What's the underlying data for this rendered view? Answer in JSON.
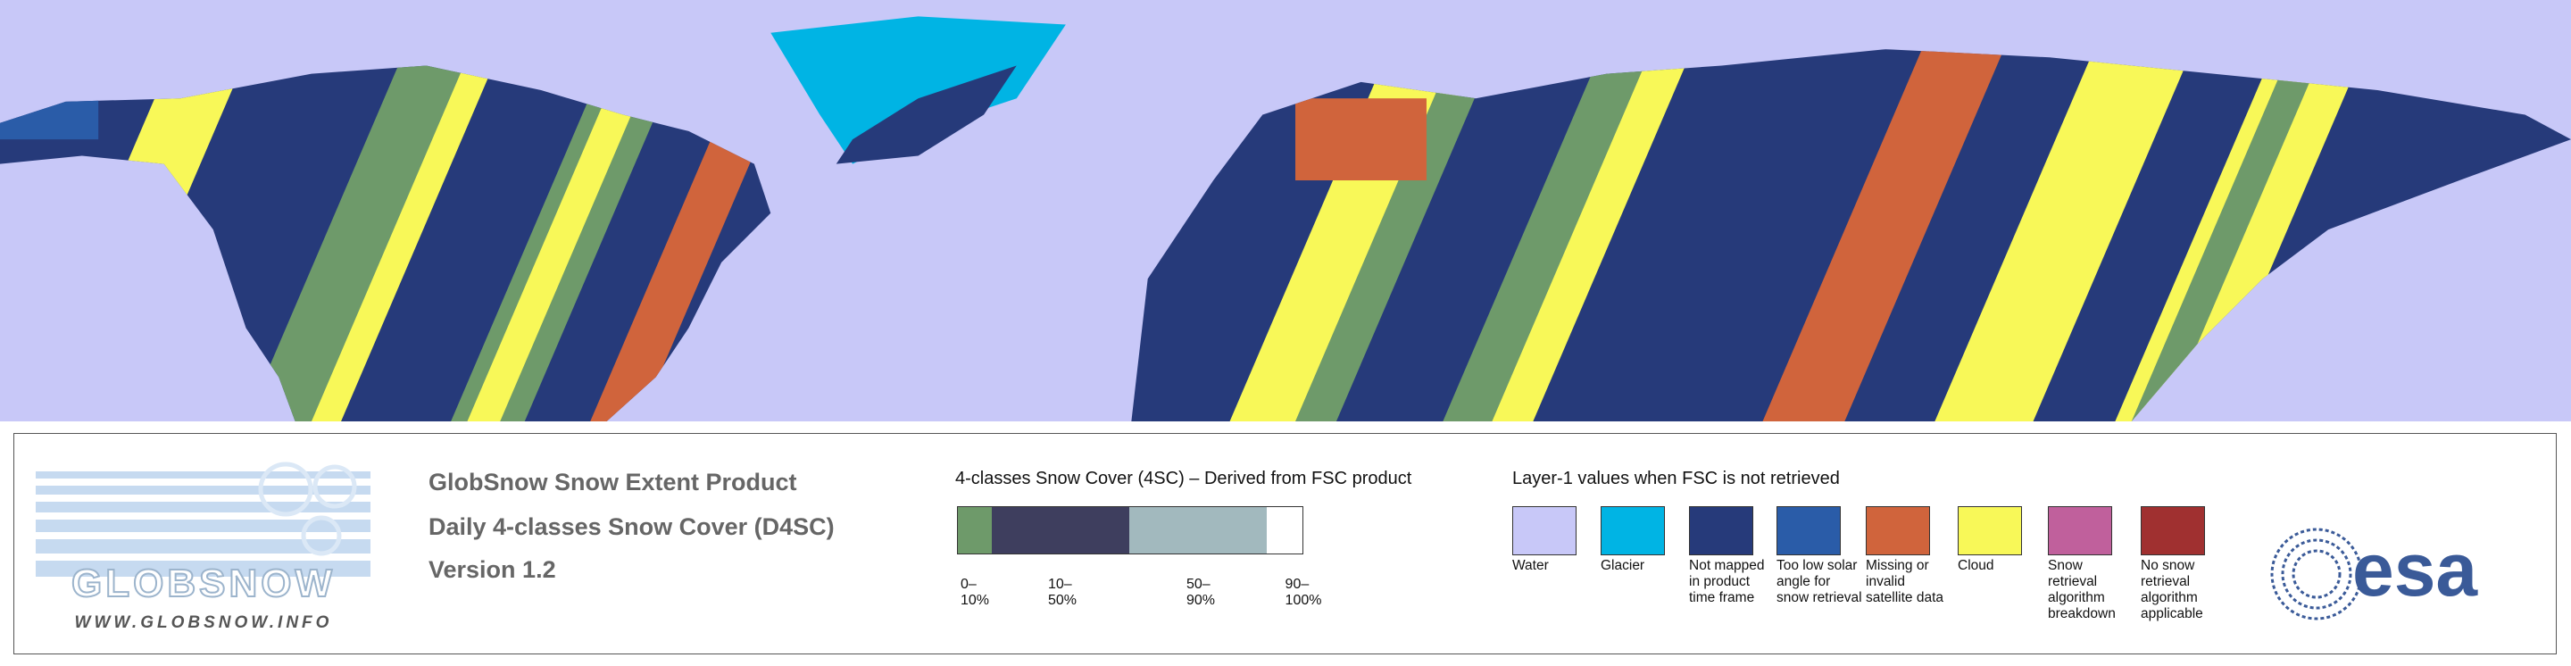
{
  "header": {
    "lines": [
      "GlobSnow Snow Extent Product",
      "Daily 4-classes Snow Cover (D4SC)",
      "Version 1.2"
    ]
  },
  "logos": {
    "globsnow": "GLOBSNOW",
    "globsnow_url": "WWW.GLOBSNOW.INFO",
    "esa": "esa"
  },
  "fsc_legend": {
    "title": "4-classes Snow Cover (4SC) – Derived from FSC product",
    "classes": [
      {
        "label": "0–10%",
        "color": "#6e9a6a"
      },
      {
        "label": "10–50%",
        "color": "#3e3e5e"
      },
      {
        "label": "50–90%",
        "color": "#a2b9be"
      },
      {
        "label": "90–100%",
        "color": "#ffffff"
      }
    ]
  },
  "layer1_legend": {
    "title": "Layer-1 values when FSC is not retrieved",
    "items": [
      {
        "label": "Water",
        "color": "#c8c8f8"
      },
      {
        "label": "Glacier",
        "color": "#00b4e4"
      },
      {
        "label": "Not mapped in product time frame",
        "color": "#263a7a"
      },
      {
        "label": "Too low solar angle for snow retrieval",
        "color": "#2a5ca8"
      },
      {
        "label": "Missing or invalid satellite data",
        "color": "#d0643c"
      },
      {
        "label": "Cloud",
        "color": "#f8f858"
      },
      {
        "label": "Snow retrieval algorithm breakdown",
        "color": "#c0609c"
      },
      {
        "label": "No snow retrieval algorithm applicable",
        "color": "#a03030"
      }
    ]
  }
}
